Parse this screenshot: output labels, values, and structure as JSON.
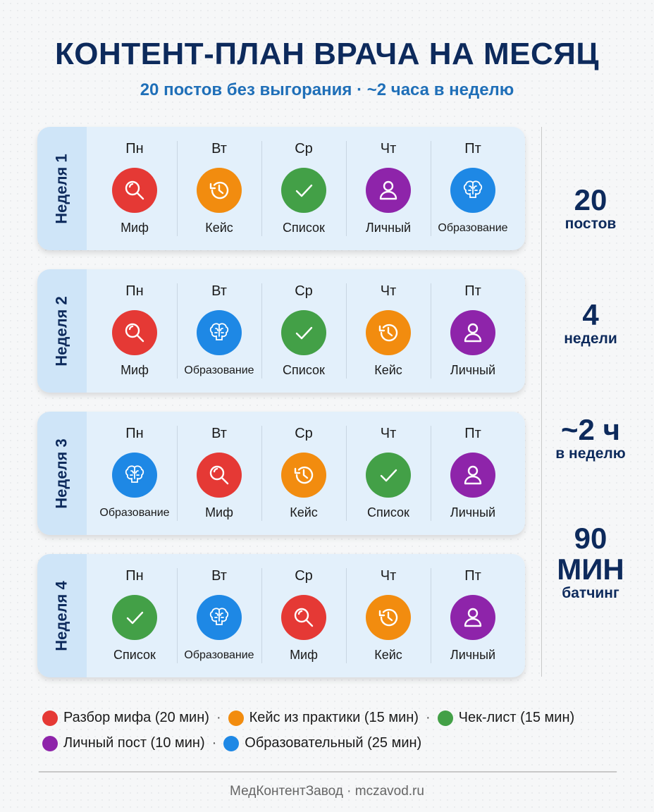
{
  "title": "КОНТЕНТ-ПЛАН ВРАЧА НА МЕСЯЦ",
  "subtitle": "20 постов без выгорания · ~2 часа в неделю",
  "colors": {
    "myth": "#e53935",
    "case": "#f28c0f",
    "list": "#43a047",
    "personal": "#8e24aa",
    "edu": "#1e88e5",
    "navy": "#0d2a5c",
    "accent": "#1f6fb8"
  },
  "icons": {
    "myth": "search-icon",
    "case": "history-icon",
    "list": "check-icon",
    "personal": "person-icon",
    "edu": "brain-icon"
  },
  "weeks": [
    {
      "label": "Неделя 1",
      "days": [
        {
          "day": "Пн",
          "type": "myth",
          "label": "Миф"
        },
        {
          "day": "Вт",
          "type": "case",
          "label": "Кейс"
        },
        {
          "day": "Ср",
          "type": "list",
          "label": "Список"
        },
        {
          "day": "Чт",
          "type": "personal",
          "label": "Личный"
        },
        {
          "day": "Пт",
          "type": "edu",
          "label": "Образование"
        }
      ]
    },
    {
      "label": "Неделя 2",
      "days": [
        {
          "day": "Пн",
          "type": "myth",
          "label": "Миф"
        },
        {
          "day": "Вт",
          "type": "edu",
          "label": "Образование"
        },
        {
          "day": "Ср",
          "type": "list",
          "label": "Список"
        },
        {
          "day": "Чт",
          "type": "case",
          "label": "Кейс"
        },
        {
          "day": "Пт",
          "type": "personal",
          "label": "Личный"
        }
      ]
    },
    {
      "label": "Неделя 3",
      "days": [
        {
          "day": "Пн",
          "type": "edu",
          "label": "Образование"
        },
        {
          "day": "Вт",
          "type": "myth",
          "label": "Миф"
        },
        {
          "day": "Ср",
          "type": "case",
          "label": "Кейс"
        },
        {
          "day": "Чт",
          "type": "list",
          "label": "Список"
        },
        {
          "day": "Пт",
          "type": "personal",
          "label": "Личный"
        }
      ]
    },
    {
      "label": "Неделя 4",
      "days": [
        {
          "day": "Пн",
          "type": "list",
          "label": "Список"
        },
        {
          "day": "Вт",
          "type": "edu",
          "label": "Образование"
        },
        {
          "day": "Ср",
          "type": "myth",
          "label": "Миф"
        },
        {
          "day": "Чт",
          "type": "case",
          "label": "Кейс"
        },
        {
          "day": "Пт",
          "type": "personal",
          "label": "Личный"
        }
      ]
    }
  ],
  "stats": [
    {
      "big": "20",
      "small": "постов"
    },
    {
      "big": "4",
      "small": "недели"
    },
    {
      "big": "~2 ч",
      "small": "в неделю"
    },
    {
      "big": "90 МИН",
      "small": "батчинг"
    }
  ],
  "legend": [
    {
      "type": "myth",
      "text": "Разбор мифа (20 мин)"
    },
    {
      "type": "case",
      "text": "Кейс из практики (15 мин)"
    },
    {
      "type": "list",
      "text": "Чек-лист (15 мин)"
    },
    {
      "type": "personal",
      "text": "Личный пост (10 мин)"
    },
    {
      "type": "edu",
      "text": "Образовательный (25 мин)"
    }
  ],
  "footer": "МедКонтентЗавод · mczavod.ru"
}
